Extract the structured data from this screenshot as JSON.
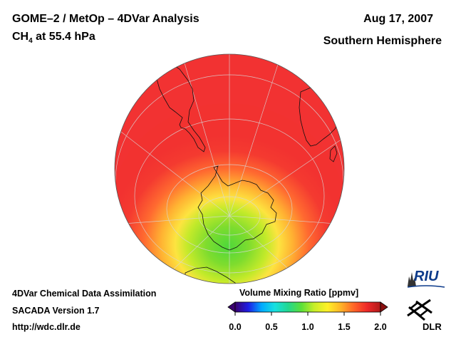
{
  "header": {
    "title": "GOME–2 / MetOp – 4DVar Analysis",
    "species_main": "CH",
    "species_sub": "4",
    "species_rest": " at 55.4 hPa",
    "date": "Aug 17, 2007",
    "hemisphere": "Southern Hemisphere"
  },
  "info": {
    "line1": "4DVar Chemical Data Assimilation",
    "line2": "SACADA Version 1.7",
    "line3": "http://wdc.dlr.de"
  },
  "colorbar": {
    "title": "Volume Mixing Ratio [ppmv]",
    "ticks": [
      "0.0",
      "0.5",
      "1.0",
      "1.5",
      "2.0"
    ],
    "range": [
      0.0,
      2.0
    ],
    "colors": [
      "#3a006e",
      "#1e1ee6",
      "#00aaff",
      "#18e0e0",
      "#22d890",
      "#5ae03a",
      "#c8ee28",
      "#fff028",
      "#ffb428",
      "#ff6428",
      "#ee2828",
      "#b01818"
    ]
  },
  "logos": {
    "riu": "RIU",
    "dlr": "DLR"
  },
  "icons": {
    "riu": "riu-logo-icon",
    "dlr": "dlr-logo-icon"
  }
}
